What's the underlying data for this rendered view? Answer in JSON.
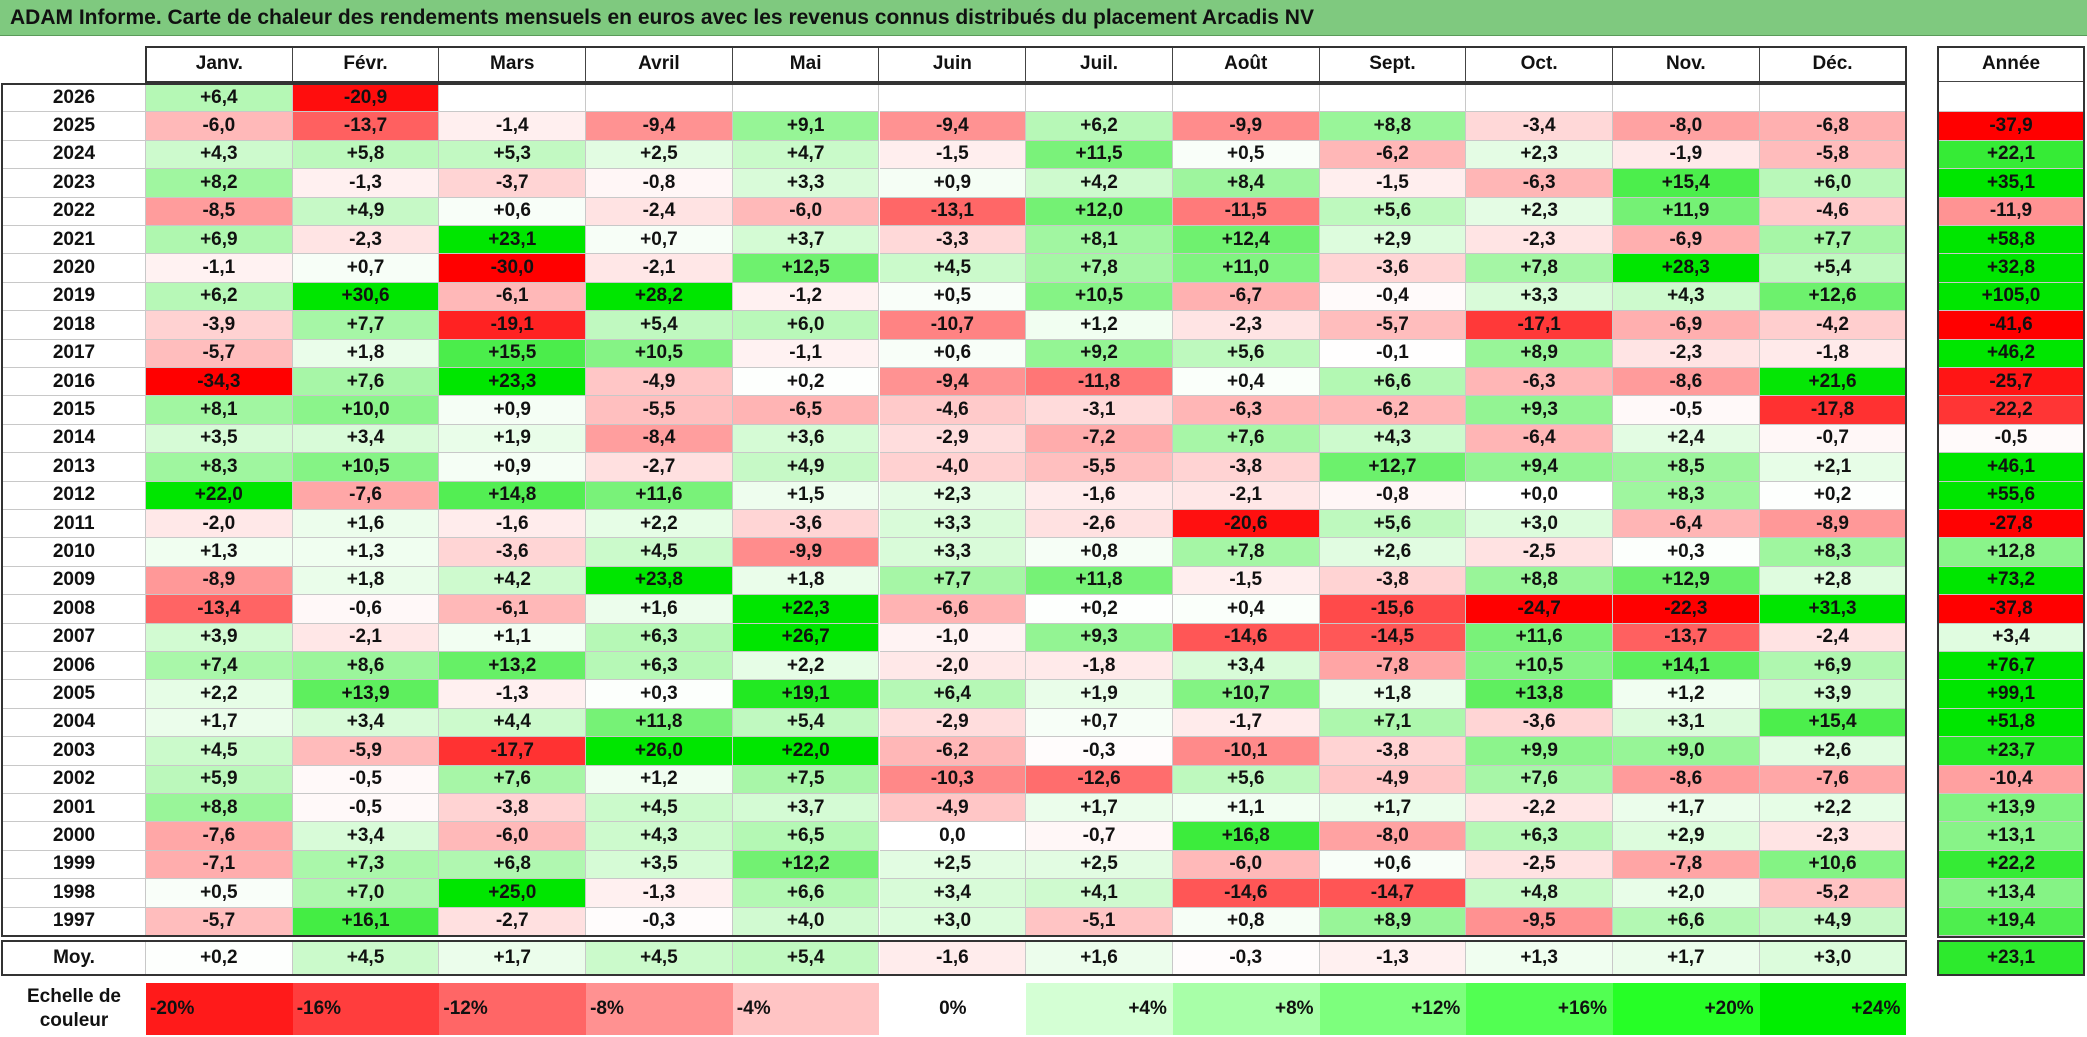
{
  "title": "ADAM Informe. Carte de chaleur des rendements mensuels en euros avec les revenus connus distribués du placement Arcadis NV",
  "chart_data": {
    "type": "heatmap",
    "months": [
      "Janv.",
      "Févr.",
      "Mars",
      "Avril",
      "Mai",
      "Juin",
      "Juil.",
      "Août",
      "Sept.",
      "Oct.",
      "Nov.",
      "Déc."
    ],
    "year_header": "Année",
    "rows": [
      {
        "year": "2026",
        "values": [
          "+6,4",
          "-20,9",
          "",
          "",
          "",
          "",
          "",
          "",
          "",
          "",
          "",
          ""
        ],
        "annual": ""
      },
      {
        "year": "2025",
        "values": [
          "-6,0",
          "-13,7",
          "-1,4",
          "-9,4",
          "+9,1",
          "-9,4",
          "+6,2",
          "-9,9",
          "+8,8",
          "-3,4",
          "-8,0",
          "-6,8"
        ],
        "annual": "-37,9"
      },
      {
        "year": "2024",
        "values": [
          "+4,3",
          "+5,8",
          "+5,3",
          "+2,5",
          "+4,7",
          "-1,5",
          "+11,5",
          "+0,5",
          "-6,2",
          "+2,3",
          "-1,9",
          "-5,8"
        ],
        "annual": "+22,1"
      },
      {
        "year": "2023",
        "values": [
          "+8,2",
          "-1,3",
          "-3,7",
          "-0,8",
          "+3,3",
          "+0,9",
          "+4,2",
          "+8,4",
          "-1,5",
          "-6,3",
          "+15,4",
          "+6,0"
        ],
        "annual": "+35,1"
      },
      {
        "year": "2022",
        "values": [
          "-8,5",
          "+4,9",
          "+0,6",
          "-2,4",
          "-6,0",
          "-13,1",
          "+12,0",
          "-11,5",
          "+5,6",
          "+2,3",
          "+11,9",
          "-4,6"
        ],
        "annual": "-11,9"
      },
      {
        "year": "2021",
        "values": [
          "+6,9",
          "-2,3",
          "+23,1",
          "+0,7",
          "+3,7",
          "-3,3",
          "+8,1",
          "+12,4",
          "+2,9",
          "-2,3",
          "-6,9",
          "+7,7"
        ],
        "annual": "+58,8"
      },
      {
        "year": "2020",
        "values": [
          "-1,1",
          "+0,7",
          "-30,0",
          "-2,1",
          "+12,5",
          "+4,5",
          "+7,8",
          "+11,0",
          "-3,6",
          "+7,8",
          "+28,3",
          "+5,4"
        ],
        "annual": "+32,8"
      },
      {
        "year": "2019",
        "values": [
          "+6,2",
          "+30,6",
          "-6,1",
          "+28,2",
          "-1,2",
          "+0,5",
          "+10,5",
          "-6,7",
          "-0,4",
          "+3,3",
          "+4,3",
          "+12,6"
        ],
        "annual": "+105,0"
      },
      {
        "year": "2018",
        "values": [
          "-3,9",
          "+7,7",
          "-19,1",
          "+5,4",
          "+6,0",
          "-10,7",
          "+1,2",
          "-2,3",
          "-5,7",
          "-17,1",
          "-6,9",
          "-4,2"
        ],
        "annual": "-41,6"
      },
      {
        "year": "2017",
        "values": [
          "-5,7",
          "+1,8",
          "+15,5",
          "+10,5",
          "-1,1",
          "+0,6",
          "+9,2",
          "+5,6",
          "-0,1",
          "+8,9",
          "-2,3",
          "-1,8"
        ],
        "annual": "+46,2"
      },
      {
        "year": "2016",
        "values": [
          "-34,3",
          "+7,6",
          "+23,3",
          "-4,9",
          "+0,2",
          "-9,4",
          "-11,8",
          "+0,4",
          "+6,6",
          "-6,3",
          "-8,6",
          "+21,6"
        ],
        "annual": "-25,7"
      },
      {
        "year": "2015",
        "values": [
          "+8,1",
          "+10,0",
          "+0,9",
          "-5,5",
          "-6,5",
          "-4,6",
          "-3,1",
          "-6,3",
          "-6,2",
          "+9,3",
          "-0,5",
          "-17,8"
        ],
        "annual": "-22,2"
      },
      {
        "year": "2014",
        "values": [
          "+3,5",
          "+3,4",
          "+1,9",
          "-8,4",
          "+3,6",
          "-2,9",
          "-7,2",
          "+7,6",
          "+4,3",
          "-6,4",
          "+2,4",
          "-0,7"
        ],
        "annual": "-0,5"
      },
      {
        "year": "2013",
        "values": [
          "+8,3",
          "+10,5",
          "+0,9",
          "-2,7",
          "+4,9",
          "-4,0",
          "-5,5",
          "-3,8",
          "+12,7",
          "+9,4",
          "+8,5",
          "+2,1"
        ],
        "annual": "+46,1"
      },
      {
        "year": "2012",
        "values": [
          "+22,0",
          "-7,6",
          "+14,8",
          "+11,6",
          "+1,5",
          "+2,3",
          "-1,6",
          "-2,1",
          "-0,8",
          "+0,0",
          "+8,3",
          "+0,2"
        ],
        "annual": "+55,6"
      },
      {
        "year": "2011",
        "values": [
          "-2,0",
          "+1,6",
          "-1,6",
          "+2,2",
          "-3,6",
          "+3,3",
          "-2,6",
          "-20,6",
          "+5,6",
          "+3,0",
          "-6,4",
          "-8,9"
        ],
        "annual": "-27,8"
      },
      {
        "year": "2010",
        "values": [
          "+1,3",
          "+1,3",
          "-3,6",
          "+4,5",
          "-9,9",
          "+3,3",
          "+0,8",
          "+7,8",
          "+2,6",
          "-2,5",
          "+0,3",
          "+8,3"
        ],
        "annual": "+12,8"
      },
      {
        "year": "2009",
        "values": [
          "-8,9",
          "+1,8",
          "+4,2",
          "+23,8",
          "+1,8",
          "+7,7",
          "+11,8",
          "-1,5",
          "-3,8",
          "+8,8",
          "+12,9",
          "+2,8"
        ],
        "annual": "+73,2"
      },
      {
        "year": "2008",
        "values": [
          "-13,4",
          "-0,6",
          "-6,1",
          "+1,6",
          "+22,3",
          "-6,6",
          "+0,2",
          "+0,4",
          "-15,6",
          "-24,7",
          "-22,3",
          "+31,3"
        ],
        "annual": "-37,8"
      },
      {
        "year": "2007",
        "values": [
          "+3,9",
          "-2,1",
          "+1,1",
          "+6,3",
          "+26,7",
          "-1,0",
          "+9,3",
          "-14,6",
          "-14,5",
          "+11,6",
          "-13,7",
          "-2,4"
        ],
        "annual": "+3,4"
      },
      {
        "year": "2006",
        "values": [
          "+7,4",
          "+8,6",
          "+13,2",
          "+6,3",
          "+2,2",
          "-2,0",
          "-1,8",
          "+3,4",
          "-7,8",
          "+10,5",
          "+14,1",
          "+6,9"
        ],
        "annual": "+76,7"
      },
      {
        "year": "2005",
        "values": [
          "+2,2",
          "+13,9",
          "-1,3",
          "+0,3",
          "+19,1",
          "+6,4",
          "+1,9",
          "+10,7",
          "+1,8",
          "+13,8",
          "+1,2",
          "+3,9"
        ],
        "annual": "+99,1"
      },
      {
        "year": "2004",
        "values": [
          "+1,7",
          "+3,4",
          "+4,4",
          "+11,8",
          "+5,4",
          "-2,9",
          "+0,7",
          "-1,7",
          "+7,1",
          "-3,6",
          "+3,1",
          "+15,4"
        ],
        "annual": "+51,8"
      },
      {
        "year": "2003",
        "values": [
          "+4,5",
          "-5,9",
          "-17,7",
          "+26,0",
          "+22,0",
          "-6,2",
          "-0,3",
          "-10,1",
          "-3,8",
          "+9,9",
          "+9,0",
          "+2,6"
        ],
        "annual": "+23,7"
      },
      {
        "year": "2002",
        "values": [
          "+5,9",
          "-0,5",
          "+7,6",
          "+1,2",
          "+7,5",
          "-10,3",
          "-12,6",
          "+5,6",
          "-4,9",
          "+7,6",
          "-8,6",
          "-7,6"
        ],
        "annual": "-10,4"
      },
      {
        "year": "2001",
        "values": [
          "+8,8",
          "-0,5",
          "-3,8",
          "+4,5",
          "+3,7",
          "-4,9",
          "+1,7",
          "+1,1",
          "+1,7",
          "-2,2",
          "+1,7",
          "+2,2"
        ],
        "annual": "+13,9"
      },
      {
        "year": "2000",
        "values": [
          "-7,6",
          "+3,4",
          "-6,0",
          "+4,3",
          "+6,5",
          "0,0",
          "-0,7",
          "+16,8",
          "-8,0",
          "+6,3",
          "+2,9",
          "-2,3"
        ],
        "annual": "+13,1"
      },
      {
        "year": "1999",
        "values": [
          "-7,1",
          "+7,3",
          "+6,8",
          "+3,5",
          "+12,2",
          "+2,5",
          "+2,5",
          "-6,0",
          "+0,6",
          "-2,5",
          "-7,8",
          "+10,6"
        ],
        "annual": "+22,2"
      },
      {
        "year": "1998",
        "values": [
          "+0,5",
          "+7,0",
          "+25,0",
          "-1,3",
          "+6,6",
          "+3,4",
          "+4,1",
          "-14,6",
          "-14,7",
          "+4,8",
          "+2,0",
          "-5,2"
        ],
        "annual": "+13,4"
      },
      {
        "year": "1997",
        "values": [
          "-5,7",
          "+16,1",
          "-2,7",
          "-0,3",
          "+4,0",
          "+3,0",
          "-5,1",
          "+0,8",
          "+8,9",
          "-9,5",
          "+6,6",
          "+4,9"
        ],
        "annual": "+19,4"
      }
    ],
    "average": {
      "label": "Moy.",
      "values": [
        "+0,2",
        "+4,5",
        "+1,7",
        "+4,5",
        "+5,4",
        "-1,6",
        "+1,6",
        "-0,3",
        "-1,3",
        "+1,3",
        "+1,7",
        "+3,0"
      ],
      "annual": "+23,1"
    },
    "scale": {
      "label_line1": "Echelle de",
      "label_line2": "couleur",
      "steps": [
        {
          "label": "-20%",
          "value": -20,
          "color": "#ff1a1a"
        },
        {
          "label": "-16%",
          "value": -16,
          "color": "#ff3d3d"
        },
        {
          "label": "-12%",
          "value": -12,
          "color": "#ff6666"
        },
        {
          "label": "-8%",
          "value": -8,
          "color": "#ff9191"
        },
        {
          "label": "-4%",
          "value": -4,
          "color": "#ffc4c4"
        },
        {
          "label": "0%",
          "value": 0,
          "color": "#ffffff"
        },
        {
          "label": "+4%",
          "value": 4,
          "color": "#d4ffd4"
        },
        {
          "label": "+8%",
          "value": 8,
          "color": "#a8ffa8"
        },
        {
          "label": "+12%",
          "value": 12,
          "color": "#7dff7d"
        },
        {
          "label": "+16%",
          "value": 16,
          "color": "#52ff52"
        },
        {
          "label": "+20%",
          "value": 20,
          "color": "#26ff26"
        },
        {
          "label": "+24%",
          "value": 24,
          "color": "#00ef00"
        }
      ]
    },
    "colors": {
      "title_bar": "#7fc97f",
      "negative": "#ff0000",
      "positive": "#00e600",
      "neutral": "#ffffff"
    }
  }
}
